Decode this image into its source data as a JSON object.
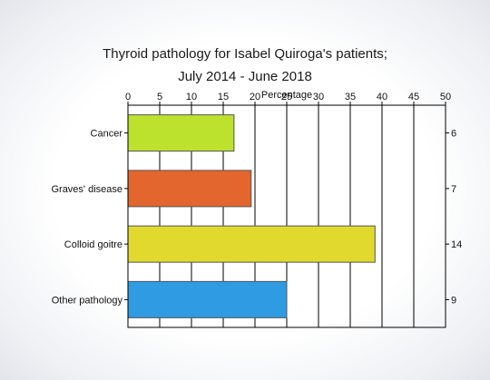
{
  "chart_data": {
    "type": "bar",
    "orientation": "horizontal",
    "title_lines": [
      "Thyroid pathology for Isabel Quiroga's patients;",
      "July 2014 - June 2018"
    ],
    "xlabel": "Percentage",
    "xlim": [
      0,
      50
    ],
    "xticks": [
      0,
      5,
      10,
      15,
      20,
      25,
      30,
      35,
      40,
      45,
      50
    ],
    "xaxis_position": "top",
    "grid": true,
    "categories": [
      "Cancer",
      "Graves' disease",
      "Colloid goitre",
      "Other pathology"
    ],
    "values": [
      16.7,
      19.4,
      38.9,
      25.0
    ],
    "counts": [
      "6",
      "7",
      "14",
      "9"
    ],
    "colors": [
      "#bde22e",
      "#e2662e",
      "#e2d92e",
      "#2e9be2"
    ]
  }
}
